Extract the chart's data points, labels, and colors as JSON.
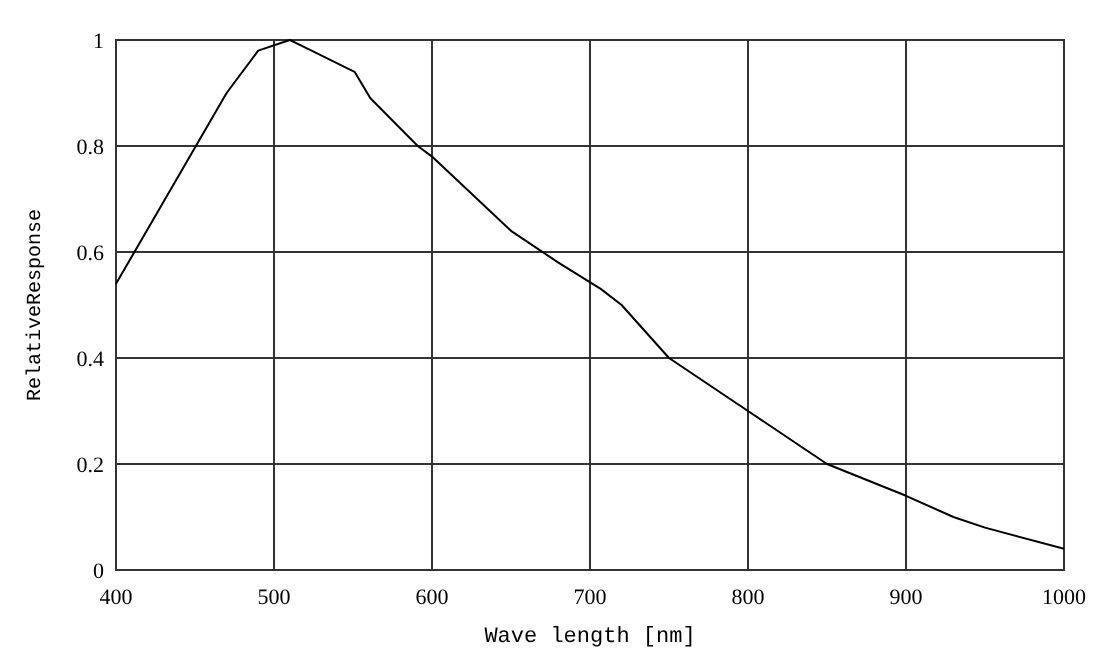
{
  "chart_data": {
    "type": "line",
    "xlabel": "Wave length [nm]",
    "ylabel": "RelativeResponse",
    "xlim": [
      400,
      1000
    ],
    "ylim": [
      0,
      1
    ],
    "xticks": [
      400,
      500,
      600,
      700,
      800,
      900,
      1000
    ],
    "yticks": [
      0,
      0.2,
      0.4,
      0.6,
      0.8,
      1
    ],
    "grid": true,
    "line_style": "solid",
    "marker": "none",
    "series": [
      {
        "color": "#000000",
        "x": [
          400,
          470,
          490,
          510,
          517,
          551,
          561,
          591,
          600,
          650,
          680,
          707,
          720,
          750,
          800,
          850,
          900,
          930,
          950,
          1000
        ],
        "values": [
          0.54,
          0.9,
          0.98,
          1.0,
          0.99,
          0.94,
          0.89,
          0.8,
          0.78,
          0.64,
          0.58,
          0.53,
          0.5,
          0.4,
          0.3,
          0.2,
          0.14,
          0.1,
          0.08,
          0.04
        ]
      }
    ]
  }
}
